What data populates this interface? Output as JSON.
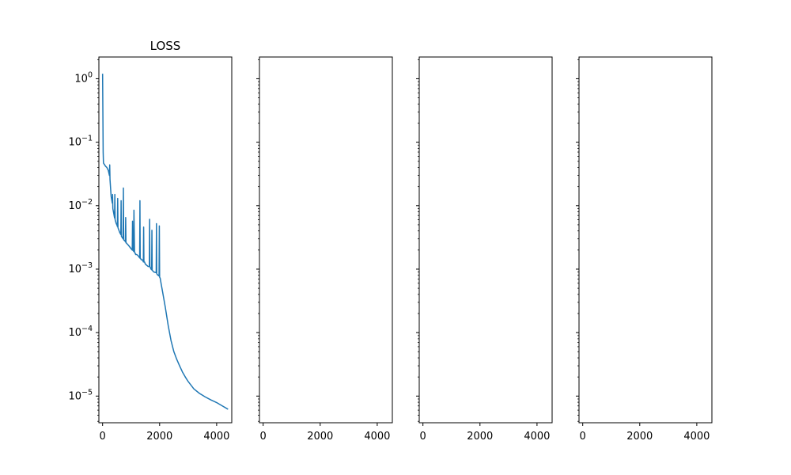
{
  "chart_data": [
    {
      "type": "line",
      "title": "LOSS",
      "xlabel": "",
      "ylabel": "",
      "yscale": "log",
      "xlim": [
        -130,
        4530
      ],
      "ylim": [
        3.8e-06,
        2.2
      ],
      "x_ticks": [
        0,
        2000,
        4000
      ],
      "x_tick_labels": [
        "0",
        "2000",
        "4000"
      ],
      "y_ticks": [
        1,
        0.1,
        0.01,
        0.001,
        0.0001,
        1e-05
      ],
      "y_tick_labels": [
        {
          "base": "10",
          "exp": "0"
        },
        {
          "base": "10",
          "exp": "−1"
        },
        {
          "base": "10",
          "exp": "−2"
        },
        {
          "base": "10",
          "exp": "−3"
        },
        {
          "base": "10",
          "exp": "−4"
        },
        {
          "base": "10",
          "exp": "−5"
        }
      ],
      "grid": false,
      "color": "#1f77b4",
      "series": [
        {
          "name": "",
          "x": [
            0,
            10,
            20,
            30,
            40,
            60,
            100,
            150,
            200,
            240,
            250,
            260,
            280,
            300,
            340,
            350,
            360,
            400,
            420,
            430,
            440,
            480,
            500,
            520,
            530,
            540,
            600,
            640,
            650,
            660,
            700,
            720,
            730,
            740,
            780,
            800,
            810,
            820,
            830,
            860,
            900,
            1000,
            1040,
            1050,
            1060,
            1090,
            1100,
            1120,
            1130,
            1140,
            1160,
            1200,
            1260,
            1300,
            1310,
            1320,
            1360,
            1400,
            1430,
            1440,
            1450,
            1470,
            1500,
            1600,
            1640,
            1650,
            1660,
            1700,
            1720,
            1730,
            1740,
            1800,
            1880,
            1890,
            1900,
            1920,
            1980,
            1990,
            2000,
            2020,
            2050,
            2100,
            2200,
            2300,
            2400,
            2500,
            2600,
            2700,
            2800,
            2900,
            3000,
            3200,
            3400,
            3600,
            3800,
            4000,
            4200,
            4400
          ],
          "y": [
            1.2,
            0.3,
            0.07,
            0.048,
            0.046,
            0.045,
            0.042,
            0.04,
            0.036,
            0.03,
            0.044,
            0.026,
            0.019,
            0.014,
            0.011,
            0.015,
            0.009,
            0.0072,
            0.0064,
            0.015,
            0.006,
            0.0052,
            0.005,
            0.0047,
            0.013,
            0.0045,
            0.0038,
            0.0035,
            0.012,
            0.0033,
            0.0031,
            0.003,
            0.019,
            0.0029,
            0.0028,
            0.0027,
            0.0065,
            0.0026,
            0.0026,
            0.0025,
            0.0024,
            0.0021,
            0.002,
            0.0057,
            0.002,
            0.0019,
            0.0085,
            0.0019,
            0.0018,
            0.0018,
            0.0017,
            0.0017,
            0.0016,
            0.0015,
            0.012,
            0.0015,
            0.0014,
            0.0014,
            0.0013,
            0.0046,
            0.0013,
            0.0013,
            0.0012,
            0.0011,
            0.0011,
            0.0061,
            0.0011,
            0.001,
            0.00098,
            0.0041,
            0.00096,
            0.0009,
            0.00088,
            0.0052,
            0.00085,
            0.00082,
            0.00078,
            0.0048,
            0.00075,
            0.00072,
            0.0006,
            0.00045,
            0.00025,
            0.00013,
            7.5e-05,
            5e-05,
            3.8e-05,
            3e-05,
            2.4e-05,
            2e-05,
            1.7e-05,
            1.3e-05,
            1.1e-05,
            9.7e-06,
            8.7e-06,
            7.9e-06,
            7e-06,
            6.2e-06
          ]
        }
      ]
    },
    {
      "type": "line",
      "title": "",
      "yscale": "log",
      "xlim": [
        -130,
        4530
      ],
      "x_ticks": [
        0,
        2000,
        4000
      ],
      "x_tick_labels": [
        "0",
        "2000",
        "4000"
      ],
      "series": []
    },
    {
      "type": "line",
      "title": "",
      "yscale": "log",
      "xlim": [
        -130,
        4530
      ],
      "x_ticks": [
        0,
        2000,
        4000
      ],
      "x_tick_labels": [
        "0",
        "2000",
        "4000"
      ],
      "series": []
    },
    {
      "type": "line",
      "title": "",
      "yscale": "log",
      "xlim": [
        -130,
        4530
      ],
      "x_ticks": [
        0,
        2000,
        4000
      ],
      "x_tick_labels": [
        "0",
        "2000",
        "4000"
      ],
      "series": []
    }
  ]
}
